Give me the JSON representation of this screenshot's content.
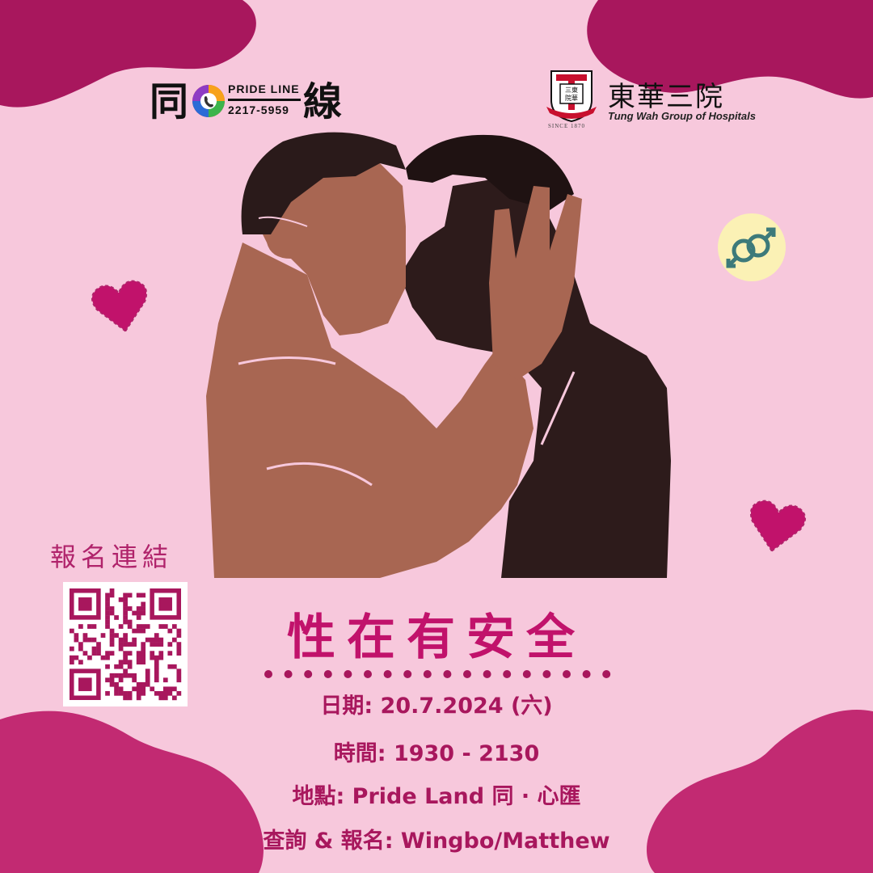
{
  "pride_line": {
    "char_left": "同",
    "char_right": "線",
    "name": "PRIDE LINE",
    "phone": "2217-5959"
  },
  "twgh": {
    "name_cn": "東華三院",
    "name_en": "Tung Wah Group of Hospitals",
    "since": "SINCE 1870",
    "crest_text": "三東院華"
  },
  "registration": {
    "label": "報名連結"
  },
  "event": {
    "title": "性在有安全",
    "date": "日期: 20.7.2024 (六)",
    "time": "時間: 1930 - 2130",
    "venue": "地點: Pride Land 同 · 心匯",
    "contact": "查詢 & 報名: Wingbo/Matthew"
  },
  "colors": {
    "background": "#f7c8dc",
    "blob": "#a8175d",
    "blob_light": "#c22a72",
    "accent": "#c1126b",
    "skin_light": "#a86652",
    "skin_dark": "#2d1b1b",
    "hair": "#2a1a1a",
    "gender_circle": "#fbf1b5",
    "gender_icon": "#3d7a7a"
  },
  "icons": [
    "heart-icon",
    "male-male-icon",
    "phone-icon",
    "qr-code"
  ]
}
